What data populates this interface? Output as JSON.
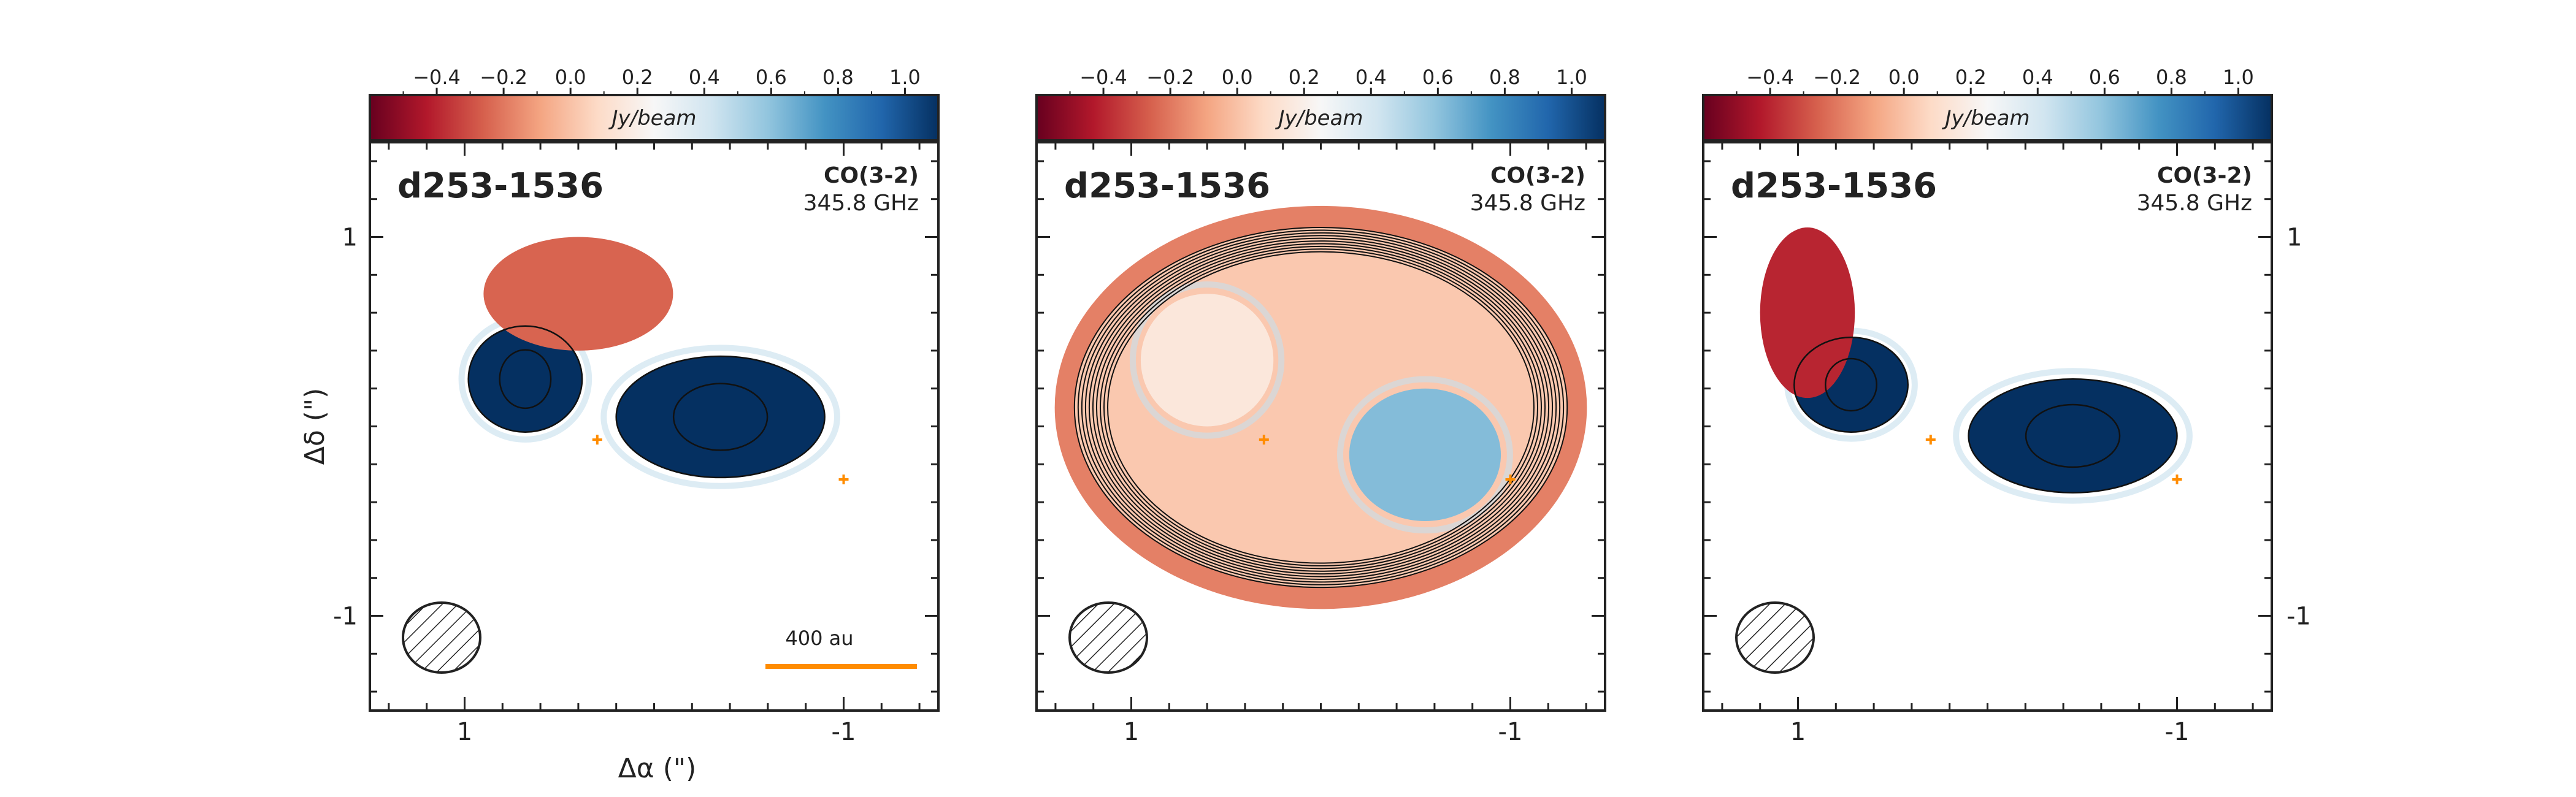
{
  "colorbar": {
    "label": "Jy/beam",
    "ticks": [
      -0.4,
      -0.2,
      0.0,
      0.2,
      0.4,
      0.6,
      0.8,
      1.0
    ],
    "tick_labels": [
      "−0.4",
      "−0.2",
      "0.0",
      "0.2",
      "0.4",
      "0.6",
      "0.8",
      "1.0"
    ],
    "range": [
      -0.6,
      1.1
    ],
    "colormap": "RdBu",
    "colors": [
      "#67001f",
      "#b2182b",
      "#d6604d",
      "#f4a582",
      "#fddbc7",
      "#f7f7f7",
      "#d1e5f0",
      "#92c5de",
      "#4393c3",
      "#2166ac",
      "#053061"
    ]
  },
  "chart_data": [
    {
      "type": "heatmap",
      "source": "d253-1536",
      "line": "CO(3-2)",
      "frequency": "345.8 GHz",
      "xlabel": "Δα (\")",
      "ylabel": "Δδ (\")",
      "xlim": [
        1.5,
        -1.5
      ],
      "ylim": [
        -1.5,
        1.5
      ],
      "xticks": [
        1,
        -1
      ],
      "yticks": [
        1,
        -1
      ],
      "tick_labels_x": [
        "1",
        "-1"
      ],
      "tick_labels_y": [
        "1",
        "-1"
      ],
      "stars": [
        [
          0.3,
          -0.07
        ],
        [
          -1.0,
          -0.28
        ]
      ],
      "scale_bar": "400 au",
      "beam": "hatched ellipse, lower-left",
      "emission": [
        {
          "kind": "lobe",
          "center": [
            0.68,
            0.25
          ],
          "radius": [
            0.3,
            0.28
          ],
          "peak": 1.1
        },
        {
          "kind": "lobe",
          "center": [
            -0.35,
            0.05
          ],
          "radius": [
            0.55,
            0.32
          ],
          "peak": 1.2
        },
        {
          "kind": "negative",
          "center": [
            0.4,
            0.7
          ],
          "radius": [
            0.5,
            0.3
          ],
          "peak": -0.25
        }
      ],
      "contour_levels": [
        "3 levels"
      ]
    },
    {
      "type": "heatmap",
      "source": "d253-1536",
      "line": "CO(3-2)",
      "frequency": "345.8 GHz",
      "xlim": [
        1.5,
        -1.5
      ],
      "ylim": [
        -1.5,
        1.5
      ],
      "xticks": [
        1,
        -1
      ],
      "yticks": [
        1,
        -1
      ],
      "tick_labels_x": [
        "1",
        "-1"
      ],
      "tick_labels_y": [
        "1",
        "-1"
      ],
      "stars": [
        [
          0.3,
          -0.07
        ],
        [
          -1.0,
          -0.28
        ]
      ],
      "beam": "hatched ellipse, lower-left",
      "emission": [
        {
          "kind": "model",
          "center": [
            0.0,
            0.1
          ],
          "radius": [
            1.3,
            0.95
          ],
          "peak": 0.15
        },
        {
          "kind": "lobe",
          "center": [
            -0.55,
            -0.15
          ],
          "radius": [
            0.4,
            0.35
          ],
          "peak": 0.62
        },
        {
          "kind": "lobe",
          "center": [
            0.6,
            0.35
          ],
          "radius": [
            0.35,
            0.35
          ],
          "peak": 0.15
        }
      ],
      "contour_levels": [
        "10 levels"
      ]
    },
    {
      "type": "heatmap",
      "source": "d253-1536",
      "line": "CO(3-2)",
      "frequency": "345.8 GHz",
      "xlim": [
        1.5,
        -1.5
      ],
      "ylim": [
        -1.5,
        1.5
      ],
      "xticks": [
        1,
        -1
      ],
      "yticks": [
        1,
        -1
      ],
      "tick_labels_x": [
        "1",
        "-1"
      ],
      "tick_labels_y": [
        "1",
        "-1"
      ],
      "stars": [
        [
          0.3,
          -0.07
        ],
        [
          -1.0,
          -0.28
        ]
      ],
      "beam": "hatched ellipse, lower-left",
      "emission": [
        {
          "kind": "lobe",
          "center": [
            0.72,
            0.22
          ],
          "radius": [
            0.3,
            0.25
          ],
          "peak": 1.1
        },
        {
          "kind": "lobe",
          "center": [
            -0.45,
            -0.05
          ],
          "radius": [
            0.55,
            0.3
          ],
          "peak": 1.2
        },
        {
          "kind": "negative",
          "center": [
            0.95,
            0.6
          ],
          "radius": [
            0.25,
            0.45
          ],
          "peak": -0.4
        }
      ],
      "contour_levels": [
        "3 levels"
      ]
    }
  ]
}
